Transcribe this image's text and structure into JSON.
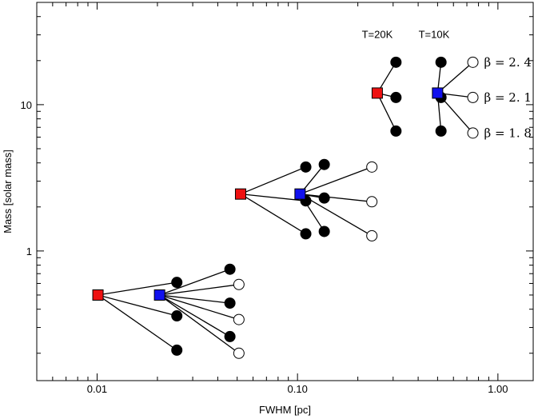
{
  "chart_data": {
    "type": "scatter",
    "title": "",
    "xlabel": "FWHM [pc]",
    "ylabel": "Mass [solar mass]",
    "xscale": "log",
    "yscale": "log",
    "xlim": [
      0.005,
      1.5
    ],
    "ylim": [
      0.13,
      50
    ],
    "xticks": [
      0.01,
      0.1,
      1.0
    ],
    "xtick_labels": [
      "0.01",
      "0.10",
      "1.00"
    ],
    "yticks": [
      1,
      10
    ],
    "ytick_labels": [
      "1",
      "10"
    ],
    "grid": false,
    "legend": "none",
    "colors": {
      "red": "#ee1111",
      "blue": "#1111ee",
      "filled": "#000000",
      "open": "#ffffff"
    },
    "groups": [
      {
        "red": {
          "x": 0.0101,
          "y": 0.5
        },
        "blue": {
          "x": 0.0205,
          "y": 0.5
        },
        "red_children": [
          {
            "x": 0.025,
            "y": 0.61
          },
          {
            "x": 0.025,
            "y": 0.36
          },
          {
            "x": 0.025,
            "y": 0.21
          }
        ],
        "blue_children": [
          {
            "x": 0.046,
            "y": 0.75,
            "open": false
          },
          {
            "x": 0.046,
            "y": 0.44,
            "open": false
          },
          {
            "x": 0.046,
            "y": 0.26,
            "open": false
          },
          {
            "x": 0.051,
            "y": 0.59,
            "open": true
          },
          {
            "x": 0.051,
            "y": 0.34,
            "open": true
          },
          {
            "x": 0.051,
            "y": 0.2,
            "open": true
          }
        ]
      },
      {
        "red": {
          "x": 0.052,
          "y": 2.45
        },
        "blue": {
          "x": 0.103,
          "y": 2.45
        },
        "red_children": [
          {
            "x": 0.11,
            "y": 3.75
          },
          {
            "x": 0.11,
            "y": 2.2
          },
          {
            "x": 0.11,
            "y": 1.31
          }
        ],
        "blue_children": [
          {
            "x": 0.136,
            "y": 3.9,
            "open": false
          },
          {
            "x": 0.136,
            "y": 2.3,
            "open": false
          },
          {
            "x": 0.136,
            "y": 1.36,
            "open": false
          },
          {
            "x": 0.235,
            "y": 3.75,
            "open": true
          },
          {
            "x": 0.235,
            "y": 2.17,
            "open": true
          },
          {
            "x": 0.235,
            "y": 1.27,
            "open": true
          }
        ]
      },
      {
        "red": {
          "x": 0.25,
          "y": 12.0
        },
        "blue": {
          "x": 0.5,
          "y": 12.0
        },
        "red_children": [
          {
            "x": 0.31,
            "y": 19.5
          },
          {
            "x": 0.31,
            "y": 11.2
          },
          {
            "x": 0.31,
            "y": 6.6
          }
        ],
        "blue_children": [
          {
            "x": 0.52,
            "y": 19.5,
            "open": false
          },
          {
            "x": 0.52,
            "y": 11.2,
            "open": false
          },
          {
            "x": 0.52,
            "y": 6.6,
            "open": false
          },
          {
            "x": 0.75,
            "y": 19.5,
            "open": true
          },
          {
            "x": 0.75,
            "y": 11.2,
            "open": true
          },
          {
            "x": 0.75,
            "y": 6.4,
            "open": true
          }
        ]
      }
    ],
    "annotations": [
      {
        "text": "T=20K",
        "x": 0.25,
        "y": 28.5
      },
      {
        "text": "T=10K",
        "x": 0.48,
        "y": 28.5
      }
    ],
    "beta_labels": [
      {
        "text": "β = 2. 4",
        "y": 19.5
      },
      {
        "text": "β = 2. 1",
        "y": 11.2
      },
      {
        "text": "β = 1. 8",
        "y": 6.4
      }
    ]
  }
}
